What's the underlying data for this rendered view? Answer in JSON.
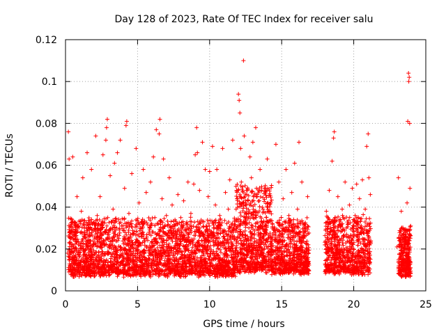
{
  "chart_data": {
    "type": "scatter",
    "title": "Day 128 of 2023, Rate Of TEC Index for receiver salu",
    "xlabel": "GPS time / hours",
    "ylabel": "ROTI / TECUs",
    "xlim": [
      0,
      25
    ],
    "ylim": [
      0,
      0.12
    ],
    "xticks": [
      0,
      5,
      10,
      15,
      20,
      25
    ],
    "xtick_labels": [
      "0",
      "5",
      "10",
      "15",
      "20",
      "25"
    ],
    "yticks": [
      0,
      0.02,
      0.04,
      0.06,
      0.08,
      0.1,
      0.12
    ],
    "ytick_labels": [
      "0",
      "0.02",
      "0.04",
      "0.06",
      "0.08",
      "0.1",
      "0.12"
    ],
    "grid": true,
    "marker": "plus",
    "series": [
      {
        "color": "#ff0000",
        "points": [
          [
            0.15,
            0.018
          ],
          [
            0.2,
            0.076
          ],
          [
            0.25,
            0.063
          ],
          [
            0.3,
            0.012
          ],
          [
            0.35,
            0.025
          ],
          [
            0.4,
            0.029
          ],
          [
            0.45,
            0.015
          ],
          [
            0.5,
            0.064
          ],
          [
            0.55,
            0.021
          ],
          [
            0.6,
            0.033
          ],
          [
            0.7,
            0.017
          ],
          [
            0.8,
            0.045
          ],
          [
            0.9,
            0.022
          ],
          [
            1.0,
            0.012
          ],
          [
            1.1,
            0.038
          ],
          [
            1.2,
            0.054
          ],
          [
            1.3,
            0.019
          ],
          [
            1.4,
            0.027
          ],
          [
            1.5,
            0.066
          ],
          [
            1.6,
            0.014
          ],
          [
            1.7,
            0.032
          ],
          [
            1.8,
            0.058
          ],
          [
            1.9,
            0.021
          ],
          [
            2.0,
            0.011
          ],
          [
            2.1,
            0.074
          ],
          [
            2.2,
            0.036
          ],
          [
            2.3,
            0.016
          ],
          [
            2.4,
            0.045
          ],
          [
            2.5,
            0.022
          ],
          [
            2.6,
            0.065
          ],
          [
            2.7,
            0.018
          ],
          [
            2.8,
            0.072
          ],
          [
            2.85,
            0.078
          ],
          [
            2.9,
            0.082
          ],
          [
            3.0,
            0.028
          ],
          [
            3.1,
            0.055
          ],
          [
            3.2,
            0.012
          ],
          [
            3.3,
            0.039
          ],
          [
            3.4,
            0.061
          ],
          [
            3.5,
            0.019
          ],
          [
            3.6,
            0.066
          ],
          [
            3.7,
            0.025
          ],
          [
            3.8,
            0.072
          ],
          [
            3.9,
            0.031
          ],
          [
            4.0,
            0.014
          ],
          [
            4.1,
            0.049
          ],
          [
            4.2,
            0.079
          ],
          [
            4.25,
            0.081
          ],
          [
            4.3,
            0.022
          ],
          [
            4.4,
            0.037
          ],
          [
            4.5,
            0.017
          ],
          [
            4.6,
            0.056
          ],
          [
            4.7,
            0.027
          ],
          [
            4.8,
            0.012
          ],
          [
            4.9,
            0.068
          ],
          [
            5.0,
            0.024
          ],
          [
            5.1,
            0.042
          ],
          [
            5.2,
            0.015
          ],
          [
            5.3,
            0.033
          ],
          [
            5.4,
            0.058
          ],
          [
            5.5,
            0.019
          ],
          [
            5.6,
            0.047
          ],
          [
            5.7,
            0.011
          ],
          [
            5.8,
            0.028
          ],
          [
            5.9,
            0.052
          ],
          [
            6.0,
            0.021
          ],
          [
            6.1,
            0.064
          ],
          [
            6.2,
            0.035
          ],
          [
            6.3,
            0.077
          ],
          [
            6.4,
            0.016
          ],
          [
            6.5,
            0.075
          ],
          [
            6.55,
            0.082
          ],
          [
            6.6,
            0.029
          ],
          [
            6.7,
            0.044
          ],
          [
            6.8,
            0.063
          ],
          [
            6.9,
            0.018
          ],
          [
            7.0,
            0.036
          ],
          [
            7.1,
            0.013
          ],
          [
            7.2,
            0.054
          ],
          [
            7.3,
            0.025
          ],
          [
            7.4,
            0.041
          ],
          [
            7.5,
            0.017
          ],
          [
            7.6,
            0.031
          ],
          [
            7.7,
            0.012
          ],
          [
            7.8,
            0.046
          ],
          [
            7.9,
            0.022
          ],
          [
            8.0,
            0.035
          ],
          [
            8.1,
            0.014
          ],
          [
            8.2,
            0.043
          ],
          [
            8.3,
            0.019
          ],
          [
            8.4,
            0.028
          ],
          [
            8.5,
            0.052
          ],
          [
            8.6,
            0.016
          ],
          [
            8.7,
            0.037
          ],
          [
            8.8,
            0.024
          ],
          [
            8.9,
            0.051
          ],
          [
            9.0,
            0.065
          ],
          [
            9.1,
            0.078
          ],
          [
            9.15,
            0.066
          ],
          [
            9.2,
            0.021
          ],
          [
            9.3,
            0.048
          ],
          [
            9.4,
            0.014
          ],
          [
            9.5,
            0.071
          ],
          [
            9.6,
            0.033
          ],
          [
            9.7,
            0.058
          ],
          [
            9.8,
            0.019
          ],
          [
            9.9,
            0.045
          ],
          [
            10.0,
            0.057
          ],
          [
            10.1,
            0.027
          ],
          [
            10.2,
            0.069
          ],
          [
            10.3,
            0.015
          ],
          [
            10.4,
            0.041
          ],
          [
            10.5,
            0.058
          ],
          [
            10.6,
            0.022
          ],
          [
            10.7,
            0.036
          ],
          [
            10.8,
            0.012
          ],
          [
            10.9,
            0.068
          ],
          [
            11.0,
            0.029
          ],
          [
            11.1,
            0.047
          ],
          [
            11.2,
            0.016
          ],
          [
            11.3,
            0.039
          ],
          [
            11.4,
            0.053
          ],
          [
            11.5,
            0.021
          ],
          [
            11.6,
            0.072
          ],
          [
            11.7,
            0.031
          ],
          [
            11.8,
            0.017
          ],
          [
            11.9,
            0.044
          ],
          [
            12.0,
            0.094
          ],
          [
            12.05,
            0.091
          ],
          [
            12.1,
            0.085
          ],
          [
            12.15,
            0.068
          ],
          [
            12.2,
            0.052
          ],
          [
            12.3,
            0.032
          ],
          [
            12.35,
            0.11
          ],
          [
            12.4,
            0.074
          ],
          [
            12.5,
            0.043
          ],
          [
            12.6,
            0.019
          ],
          [
            12.7,
            0.037
          ],
          [
            12.8,
            0.064
          ],
          [
            12.9,
            0.054
          ],
          [
            13.0,
            0.071
          ],
          [
            13.1,
            0.025
          ],
          [
            13.2,
            0.078
          ],
          [
            13.3,
            0.046
          ],
          [
            13.4,
            0.013
          ],
          [
            13.5,
            0.058
          ],
          [
            13.6,
            0.033
          ],
          [
            13.7,
            0.016
          ],
          [
            13.8,
            0.049
          ],
          [
            13.9,
            0.027
          ],
          [
            14.0,
            0.063
          ],
          [
            14.1,
            0.012
          ],
          [
            14.2,
            0.038
          ],
          [
            14.3,
            0.021
          ],
          [
            14.5,
            0.029
          ],
          [
            14.6,
            0.07
          ],
          [
            14.7,
            0.018
          ],
          [
            14.8,
            0.052
          ],
          [
            14.9,
            0.031
          ],
          [
            15.0,
            0.015
          ],
          [
            15.1,
            0.044
          ],
          [
            15.2,
            0.024
          ],
          [
            15.3,
            0.058
          ],
          [
            15.4,
            0.013
          ],
          [
            15.5,
            0.036
          ],
          [
            15.6,
            0.021
          ],
          [
            15.7,
            0.047
          ],
          [
            15.8,
            0.017
          ],
          [
            15.9,
            0.061
          ],
          [
            16.0,
            0.028
          ],
          [
            16.1,
            0.039
          ],
          [
            16.2,
            0.071
          ],
          [
            16.3,
            0.014
          ],
          [
            16.4,
            0.052
          ],
          [
            16.5,
            0.025
          ],
          [
            16.6,
            0.032
          ],
          [
            16.7,
            0.019
          ],
          [
            16.8,
            0.045
          ],
          [
            18.0,
            0.022
          ],
          [
            18.1,
            0.038
          ],
          [
            18.2,
            0.012
          ],
          [
            18.3,
            0.048
          ],
          [
            18.4,
            0.028
          ],
          [
            18.5,
            0.062
          ],
          [
            18.6,
            0.073
          ],
          [
            18.65,
            0.076
          ],
          [
            18.7,
            0.035
          ],
          [
            18.8,
            0.017
          ],
          [
            18.9,
            0.045
          ],
          [
            19.0,
            0.024
          ],
          [
            19.1,
            0.009
          ],
          [
            19.2,
            0.039
          ],
          [
            19.3,
            0.018
          ],
          [
            19.4,
            0.052
          ],
          [
            19.5,
            0.027
          ],
          [
            19.6,
            0.014
          ],
          [
            19.7,
            0.041
          ],
          [
            19.8,
            0.023
          ],
          [
            19.9,
            0.049
          ],
          [
            20.0,
            0.012
          ],
          [
            20.1,
            0.036
          ],
          [
            20.2,
            0.051
          ],
          [
            20.3,
            0.019
          ],
          [
            20.4,
            0.044
          ],
          [
            20.5,
            0.028
          ],
          [
            20.6,
            0.053
          ],
          [
            20.7,
            0.016
          ],
          [
            20.8,
            0.039
          ],
          [
            20.9,
            0.069
          ],
          [
            21.0,
            0.075
          ],
          [
            21.05,
            0.054
          ],
          [
            21.1,
            0.022
          ],
          [
            21.15,
            0.046
          ],
          [
            23.0,
            0.021
          ],
          [
            23.1,
            0.054
          ],
          [
            23.2,
            0.012
          ],
          [
            23.3,
            0.038
          ],
          [
            23.4,
            0.018
          ],
          [
            23.5,
            0.029
          ],
          [
            23.6,
            0.009
          ],
          [
            23.7,
            0.042
          ],
          [
            23.75,
            0.081
          ],
          [
            23.8,
            0.104
          ],
          [
            23.82,
            0.1
          ],
          [
            23.85,
            0.102
          ],
          [
            23.88,
            0.08
          ],
          [
            23.9,
            0.049
          ],
          [
            23.95,
            0.031
          ]
        ],
        "dense_regions": [
          {
            "x": [
              0.2,
              11.8
            ],
            "y_low": 0.008,
            "y_high": 0.034,
            "count": 2600
          },
          {
            "x": [
              11.8,
              14.3
            ],
            "y_low": 0.01,
            "y_high": 0.05,
            "count": 700
          },
          {
            "x": [
              14.3,
              16.9
            ],
            "y_low": 0.009,
            "y_high": 0.034,
            "count": 650
          },
          {
            "x": [
              18.0,
              21.2
            ],
            "y_low": 0.009,
            "y_high": 0.035,
            "count": 750
          },
          {
            "x": [
              23.1,
              23.95
            ],
            "y_low": 0.008,
            "y_high": 0.03,
            "count": 300
          }
        ]
      }
    ]
  }
}
